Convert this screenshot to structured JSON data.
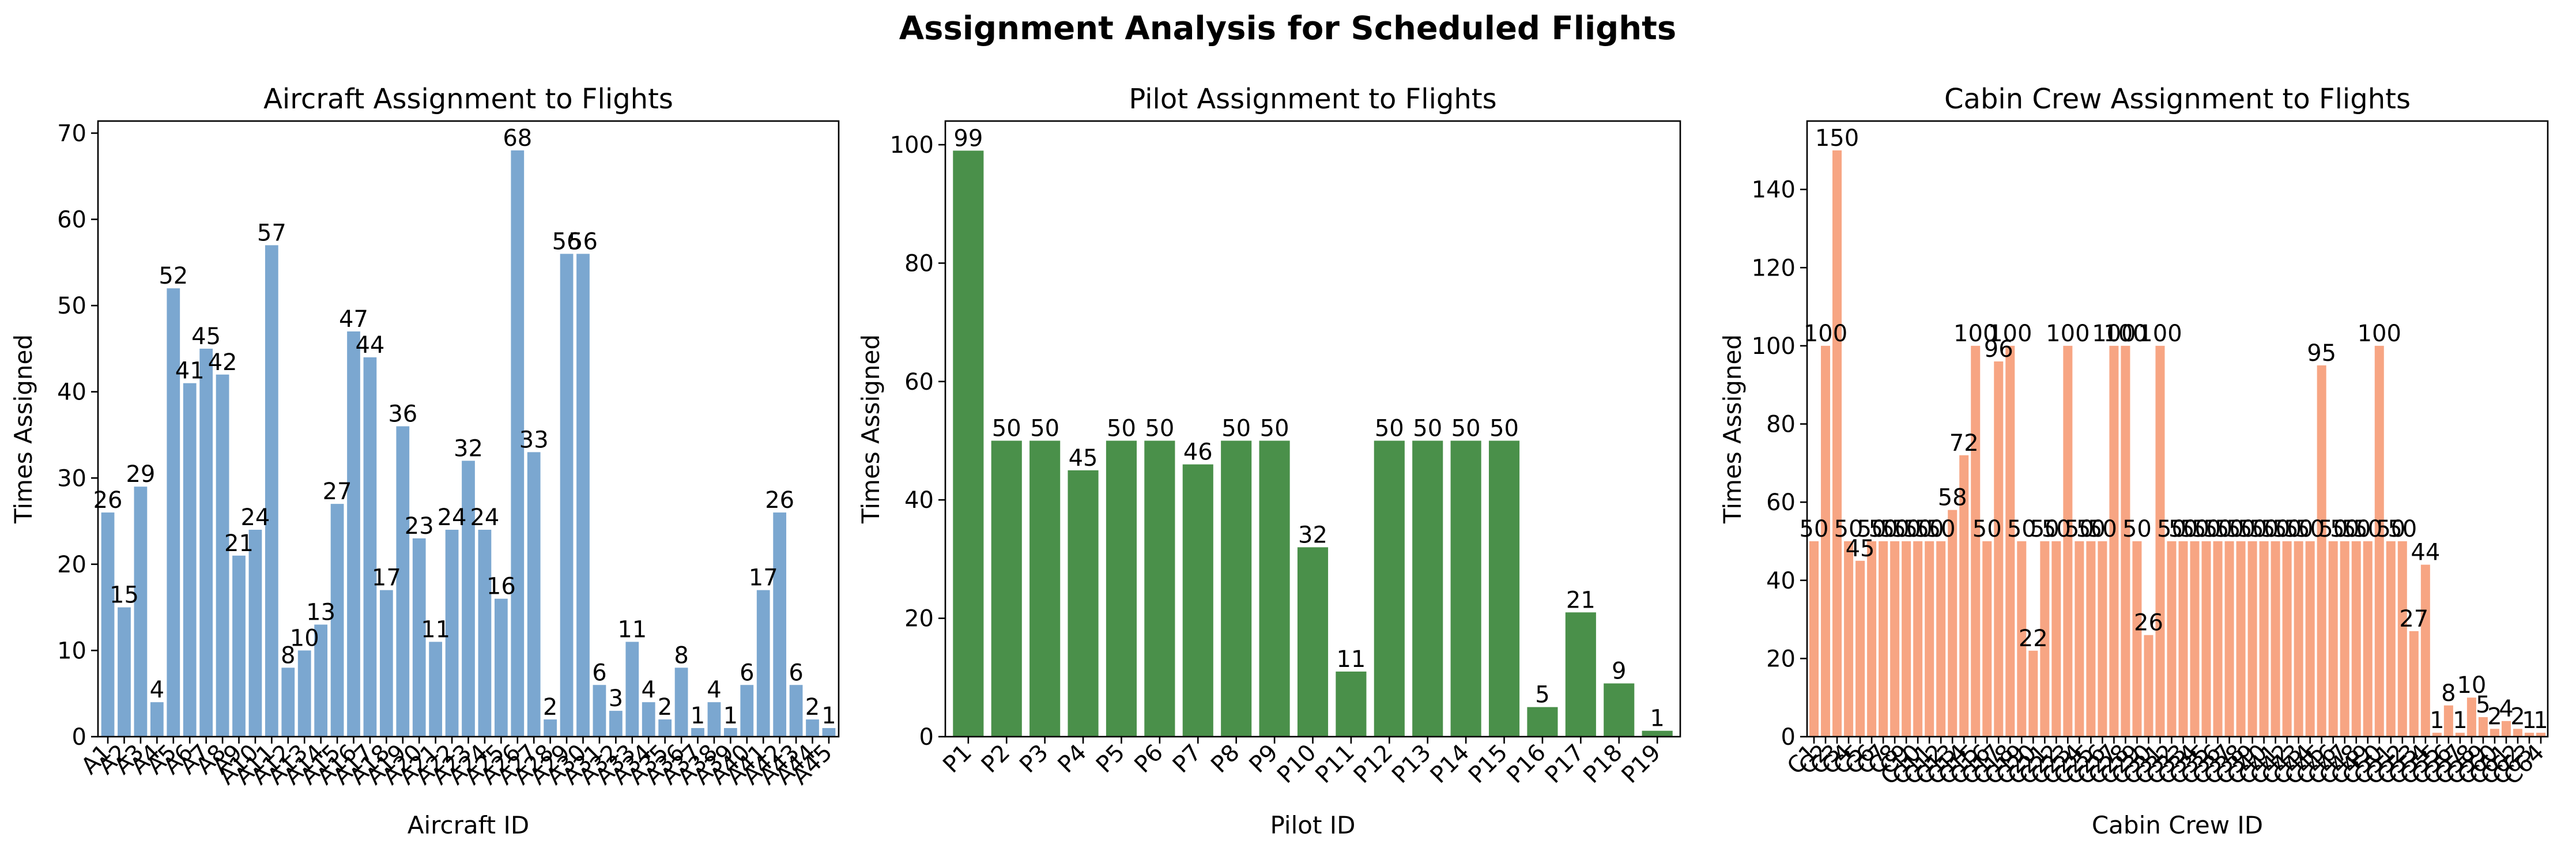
{
  "suptitle": "Assignment Analysis for Scheduled Flights",
  "chart_data": [
    {
      "type": "bar",
      "title": "Aircraft Assignment to Flights",
      "xlabel": "Aircraft ID",
      "ylabel": "Times Assigned",
      "ylim": [
        0,
        71.4
      ],
      "yticks": [
        0,
        10,
        20,
        30,
        40,
        50,
        60,
        70
      ],
      "color": "#7ba7d0",
      "categories": [
        "A1",
        "A2",
        "A3",
        "A4",
        "A5",
        "A6",
        "A7",
        "A8",
        "A9",
        "A10",
        "A11",
        "A12",
        "A13",
        "A14",
        "A15",
        "A16",
        "A17",
        "A18",
        "A19",
        "A20",
        "A21",
        "A22",
        "A23",
        "A24",
        "A25",
        "A26",
        "A27",
        "A28",
        "A29",
        "A30",
        "A31",
        "A32",
        "A33",
        "A34",
        "A35",
        "A36",
        "A37",
        "A38",
        "A39",
        "A40",
        "A41",
        "A42",
        "A43",
        "A44",
        "A45"
      ],
      "values": [
        26,
        15,
        29,
        4,
        52,
        41,
        45,
        42,
        21,
        24,
        57,
        8,
        10,
        13,
        27,
        47,
        44,
        17,
        36,
        23,
        11,
        24,
        32,
        24,
        16,
        68,
        33,
        2,
        56,
        56,
        6,
        3,
        11,
        4,
        2,
        8,
        1,
        4,
        1,
        6,
        17,
        26,
        6,
        2,
        1
      ]
    },
    {
      "type": "bar",
      "title": "Pilot Assignment to Flights",
      "xlabel": "Pilot ID",
      "ylabel": "Times Assigned",
      "ylim": [
        0,
        104
      ],
      "yticks": [
        0,
        20,
        40,
        60,
        80,
        100
      ],
      "color": "#4a904a",
      "categories": [
        "P1",
        "P2",
        "P3",
        "P4",
        "P5",
        "P6",
        "P7",
        "P8",
        "P9",
        "P10",
        "P11",
        "P12",
        "P13",
        "P14",
        "P15",
        "P16",
        "P17",
        "P18",
        "P19"
      ],
      "values": [
        99,
        50,
        50,
        45,
        50,
        50,
        46,
        50,
        50,
        32,
        11,
        50,
        50,
        50,
        50,
        5,
        21,
        9,
        1
      ]
    },
    {
      "type": "bar",
      "title": "Cabin Crew Assignment to Flights",
      "xlabel": "Cabin Crew ID",
      "ylabel": "Times Assigned",
      "ylim": [
        0,
        157.5
      ],
      "yticks": [
        0,
        20,
        40,
        60,
        80,
        100,
        120,
        140
      ],
      "color": "#f7a583",
      "categories": [
        "C1",
        "C2",
        "C3",
        "C4",
        "C5",
        "C6",
        "C7",
        "C8",
        "C9",
        "C10",
        "C11",
        "C12",
        "C13",
        "C14",
        "C15",
        "C16",
        "C17",
        "C18",
        "C19",
        "C20",
        "C21",
        "C22",
        "C23",
        "C24",
        "C25",
        "C26",
        "C27",
        "C28",
        "C29",
        "C30",
        "C31",
        "C32",
        "C33",
        "C34",
        "C35",
        "C36",
        "C37",
        "C38",
        "C39",
        "C40",
        "C41",
        "C42",
        "C43",
        "C44",
        "C45",
        "C46",
        "C47",
        "C48",
        "C49",
        "C50",
        "C51",
        "C52",
        "C53",
        "C54",
        "C55",
        "C56",
        "C57",
        "C58",
        "C59",
        "C60",
        "C61",
        "C62",
        "C63",
        "C64"
      ],
      "values": [
        50,
        100,
        150,
        50,
        45,
        50,
        50,
        50,
        50,
        50,
        50,
        50,
        58,
        72,
        100,
        50,
        96,
        100,
        50,
        22,
        50,
        50,
        100,
        50,
        50,
        50,
        100,
        100,
        50,
        26,
        100,
        50,
        50,
        50,
        50,
        50,
        50,
        50,
        50,
        50,
        50,
        50,
        50,
        50,
        95,
        50,
        50,
        50,
        50,
        100,
        50,
        50,
        27,
        44,
        1,
        8,
        1,
        10,
        5,
        2,
        4,
        2,
        1,
        1
      ]
    }
  ]
}
